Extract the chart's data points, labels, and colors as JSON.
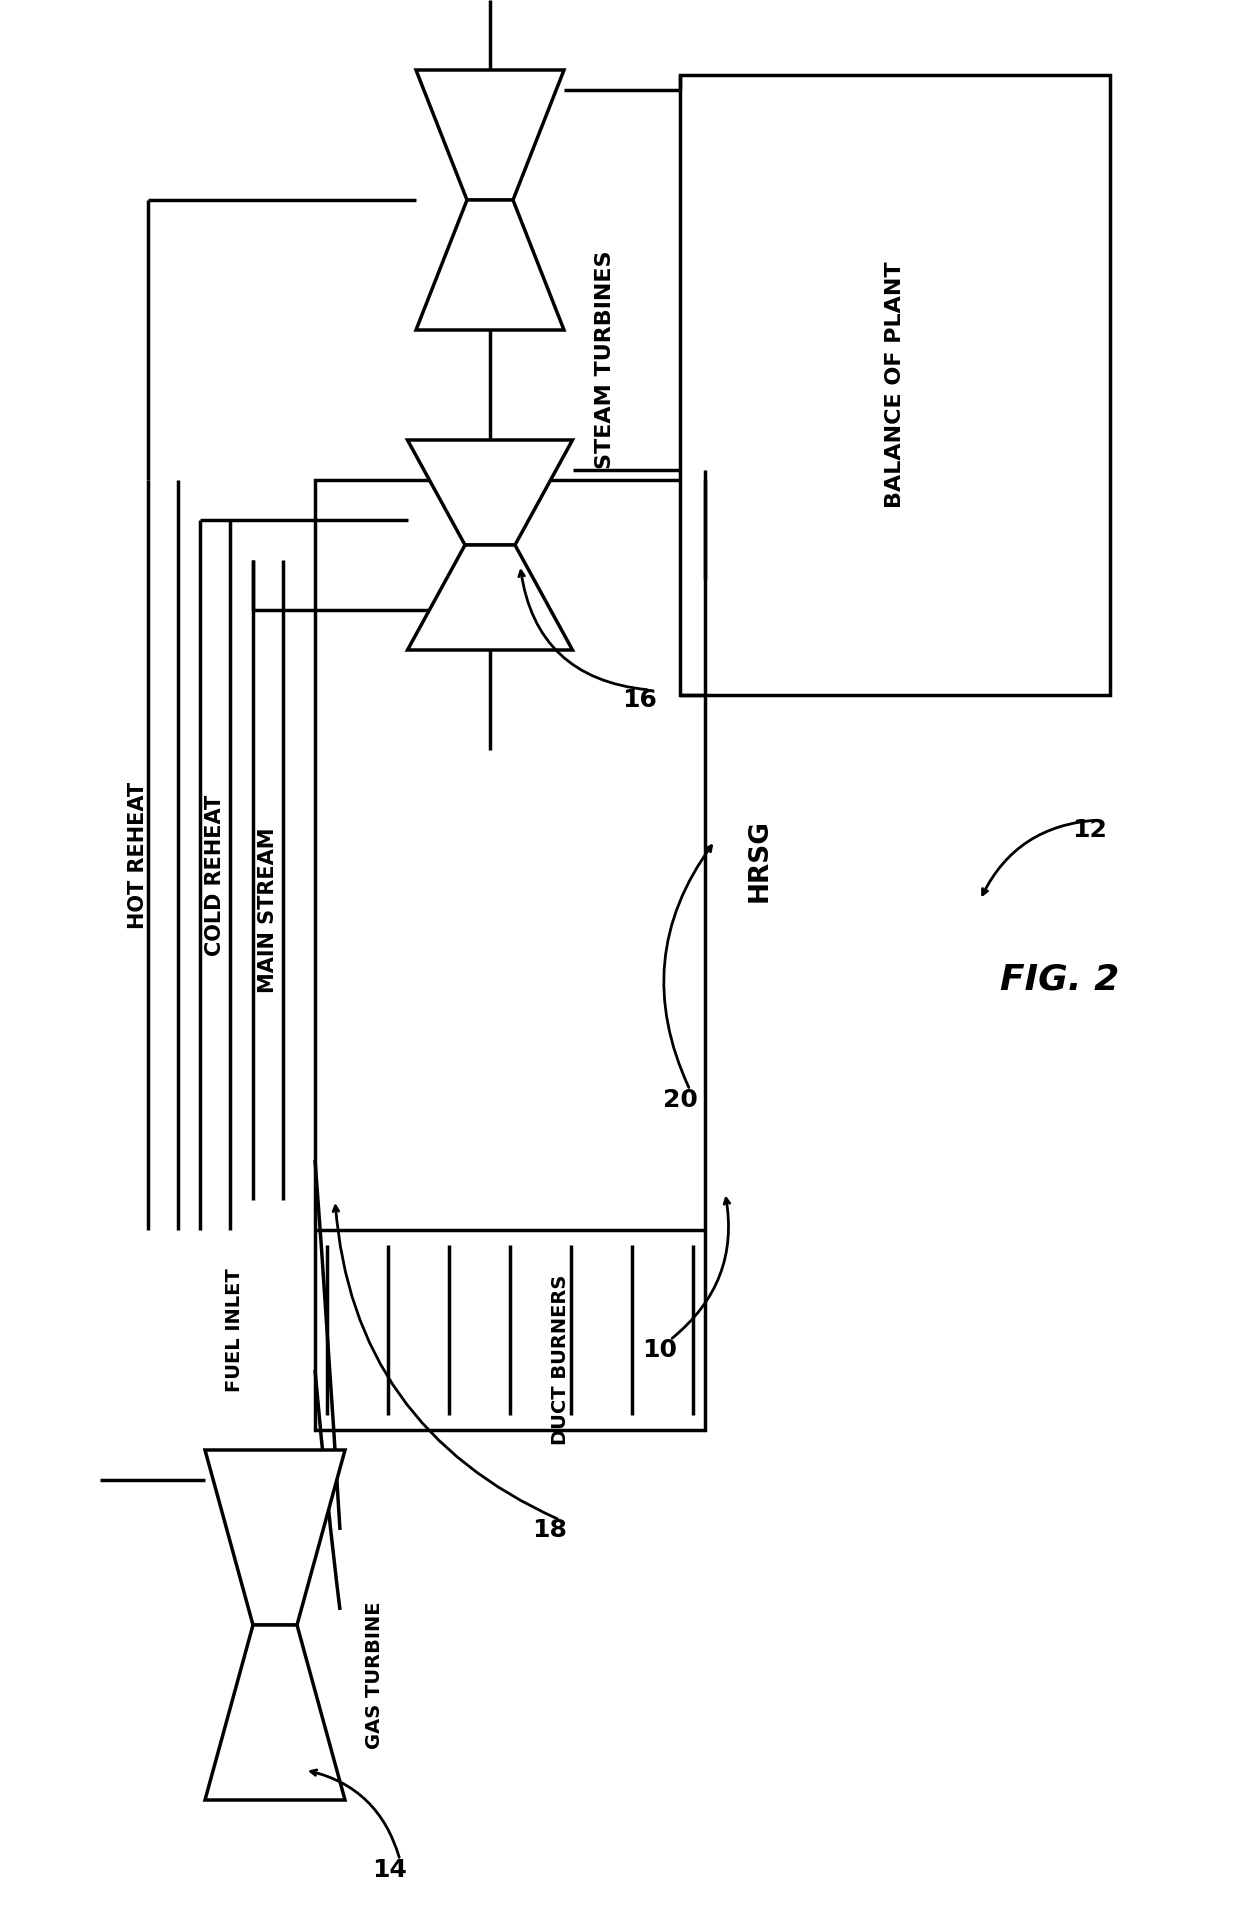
{
  "bg_color": "#ffffff",
  "lc": "#000000",
  "lw": 2.5,
  "fig_label": "FIG. 2",
  "labels": {
    "hot_reheat": "HOT REHEAT",
    "cold_reheat": "COLD REHEAT",
    "main_stream": "MAIN STREAM",
    "hrsg": "HRSG",
    "fuel_inlet": "FUEL INLET",
    "duct_burners": "DUCT BURNERS",
    "gas_turbine": "GAS TURBINE",
    "steam_turbines": "STEAM TURBINES",
    "balance_of_plant": "BALANCE OF PLANT"
  },
  "ref_nums": {
    "n10": "10",
    "n12": "12",
    "n14": "14",
    "n16": "16",
    "n18": "18",
    "n20": "20"
  }
}
